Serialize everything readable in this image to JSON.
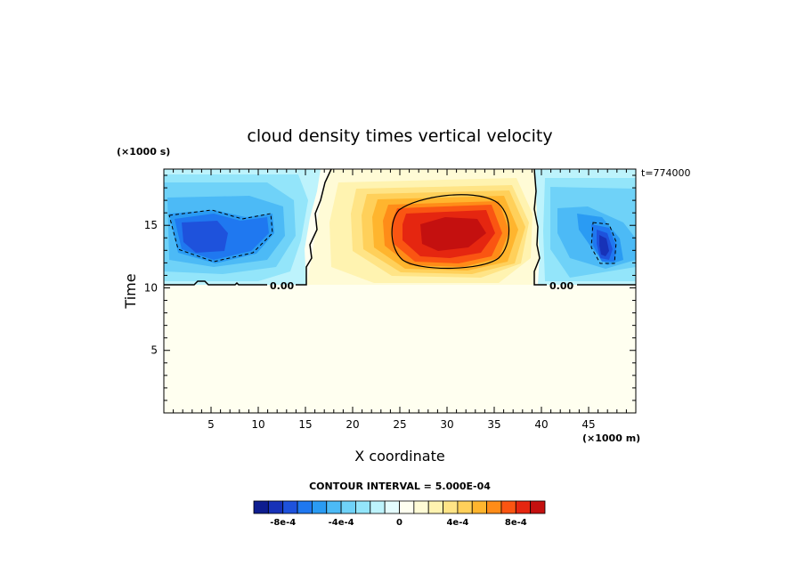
{
  "chart_data": {
    "type": "heatmap",
    "title": "cloud density times vertical velocity",
    "xlabel": "X coordinate",
    "ylabel": "Time",
    "x_units": "(×1000 m)",
    "y_units": "(×1000 s)",
    "annotation": "t=774000",
    "xlim": [
      0,
      50
    ],
    "ylim": [
      0,
      19.5
    ],
    "xticks": [
      5,
      10,
      15,
      20,
      25,
      30,
      35,
      40,
      45
    ],
    "yticks": [
      5,
      10,
      15
    ],
    "contour_interval_text": "CONTOUR INTERVAL = 5.000E-04",
    "zero_contour_labels": [
      "0.00",
      "0.00"
    ],
    "colorbar": {
      "levels": [
        -0.001,
        -0.0009,
        -0.0008,
        -0.0007,
        -0.0006,
        -0.0005,
        -0.0004,
        -0.0003,
        -0.0002,
        -0.0001,
        0,
        0.0001,
        0.0002,
        0.0003,
        0.0004,
        0.0005,
        0.0006,
        0.0007,
        0.0008,
        0.0009,
        0.001
      ],
      "colors": [
        "#0e1d8f",
        "#1732b8",
        "#1e52dc",
        "#1f78f0",
        "#2a9bf3",
        "#4cbaf6",
        "#6fd2f8",
        "#93e5fa",
        "#bdf3fc",
        "#e4fcfe",
        "#fffff0",
        "#fffbd6",
        "#fff3b0",
        "#ffe486",
        "#ffd05a",
        "#ffb52e",
        "#ff8c18",
        "#fa5512",
        "#e52610",
        "#c4100f"
      ],
      "tick_labels": [
        "-8e-4",
        "-4e-4",
        "0",
        "4e-4",
        "8e-4"
      ],
      "tick_values": [
        -0.0008,
        -0.0004,
        0,
        0.0004,
        0.0008
      ]
    },
    "features": [
      {
        "name": "negative cell (left)",
        "x_range": [
          0,
          16
        ],
        "y_range": [
          10.5,
          19.5
        ],
        "min_value": -0.0008
      },
      {
        "name": "positive cell (center)",
        "x_range": [
          16,
          39.5
        ],
        "y_range": [
          10.5,
          19.5
        ],
        "max_value": 0.001
      },
      {
        "name": "negative cell (right)",
        "x_range": [
          39.5,
          50
        ],
        "y_range": [
          10.5,
          19.5
        ],
        "min_value": -0.0008
      }
    ]
  }
}
